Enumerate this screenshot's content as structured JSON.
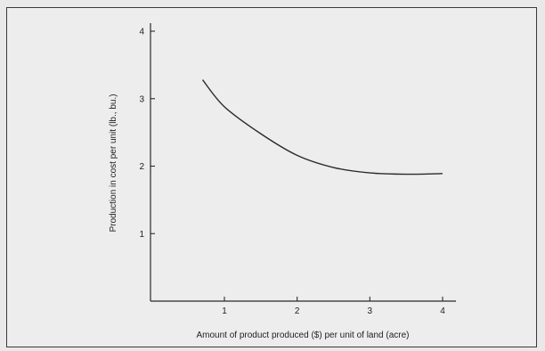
{
  "chart_data": {
    "type": "line",
    "title": "",
    "xlabel": "Amount of product produced ($) per unit of land (acre)",
    "ylabel": "Production in cost per unit (lb., bu.)",
    "xlim": [
      0,
      4.15
    ],
    "ylim": [
      0,
      4
    ],
    "xticks": [
      1,
      2,
      3,
      4
    ],
    "yticks": [
      1,
      2,
      3,
      4
    ],
    "grid": false,
    "legend": "none",
    "series": [
      {
        "color": "#2a2a2a",
        "x": [
          0.7,
          1.0,
          1.5,
          2.0,
          2.5,
          3.0,
          3.5,
          4.0
        ],
        "y": [
          3.28,
          2.88,
          2.48,
          2.16,
          1.98,
          1.9,
          1.88,
          1.89
        ]
      }
    ]
  }
}
